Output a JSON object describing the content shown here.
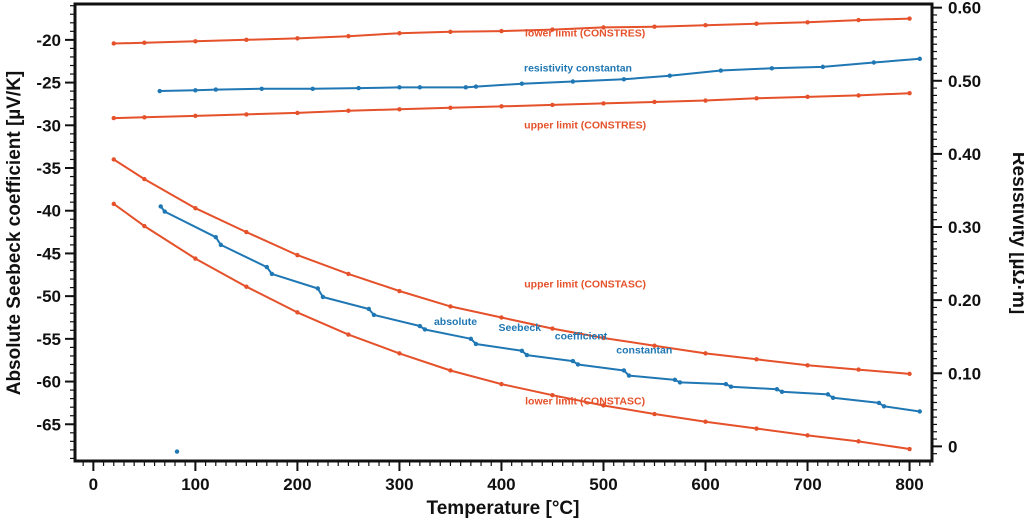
{
  "chart_data": {
    "type": "line",
    "title": "",
    "xlabel": "Temperature [°C]",
    "ylabel_left": "Absolute Seebeck coefficient [µV/K]",
    "ylabel_right": "Resistivity [µΩ·m]",
    "xlim": [
      -18,
      822
    ],
    "ylim_left": [
      -69.3,
      -15.8
    ],
    "ylim_right": [
      -0.02,
      0.605
    ],
    "x_ticks": [
      0,
      100,
      200,
      300,
      400,
      500,
      600,
      700,
      800
    ],
    "y_left_ticks": [
      -20,
      -25,
      -30,
      -35,
      -40,
      -45,
      -50,
      -55,
      -60,
      -65
    ],
    "y_right_ticks": [
      0.6,
      0.5,
      0.4,
      0.3,
      0.2,
      0.1,
      0
    ],
    "y_right_tick_labels": [
      "0.60",
      "0.50",
      "0.40",
      "0.30",
      "0.20",
      "0.10",
      "0"
    ],
    "grid": false,
    "legend": "none",
    "colors": {
      "limit": "#e5512a",
      "measured": "#1f77b4"
    },
    "series": [
      {
        "name": "lower limit (CONSTRES)",
        "axis": "right",
        "color": "#e5512a",
        "x": [
          20,
          50,
          100,
          150,
          200,
          250,
          300,
          350,
          400,
          450,
          500,
          550,
          600,
          650,
          700,
          750,
          800
        ],
        "y": [
          0.551,
          0.552,
          0.554,
          0.556,
          0.558,
          0.561,
          0.565,
          0.567,
          0.568,
          0.57,
          0.573,
          0.574,
          0.576,
          0.578,
          0.58,
          0.583,
          0.585
        ]
      },
      {
        "name": "resistivity constantan",
        "axis": "right",
        "color": "#1f77b4",
        "x": [
          65,
          100,
          120,
          165,
          215,
          260,
          300,
          320,
          365,
          375,
          420,
          470,
          520,
          565,
          615,
          665,
          715,
          765,
          810
        ],
        "y": [
          0.486,
          0.487,
          0.488,
          0.489,
          0.489,
          0.49,
          0.491,
          0.491,
          0.491,
          0.492,
          0.496,
          0.499,
          0.502,
          0.507,
          0.514,
          0.517,
          0.519,
          0.525,
          0.53
        ]
      },
      {
        "name": "upper limit (CONSTRES)",
        "axis": "right",
        "color": "#e5512a",
        "x": [
          20,
          50,
          100,
          150,
          200,
          250,
          300,
          350,
          400,
          450,
          500,
          550,
          600,
          650,
          700,
          750,
          800
        ],
        "y": [
          0.449,
          0.45,
          0.452,
          0.454,
          0.456,
          0.459,
          0.461,
          0.463,
          0.465,
          0.467,
          0.469,
          0.471,
          0.473,
          0.476,
          0.478,
          0.48,
          0.483
        ]
      },
      {
        "name": "upper limit (CONSTASC)",
        "axis": "left",
        "color": "#e5512a",
        "x": [
          20,
          50,
          100,
          150,
          200,
          250,
          300,
          350,
          400,
          450,
          500,
          550,
          600,
          650,
          700,
          750,
          800
        ],
        "y": [
          -34.0,
          -36.3,
          -39.7,
          -42.5,
          -45.2,
          -47.4,
          -49.4,
          -51.2,
          -52.5,
          -53.8,
          -54.9,
          -55.8,
          -56.7,
          -57.4,
          -58.1,
          -58.6,
          -59.1
        ]
      },
      {
        "name": "absolute Seebeck coefficient constantan",
        "axis": "left",
        "color": "#1f77b4",
        "x": [
          66,
          70,
          120,
          125,
          170,
          175,
          220,
          225,
          270,
          275,
          320,
          325,
          370,
          375,
          420,
          425,
          470,
          475,
          520,
          525,
          570,
          575,
          620,
          625,
          670,
          675,
          720,
          725,
          770,
          775,
          810
        ],
        "y": [
          -39.5,
          -40.1,
          -43.1,
          -44.0,
          -46.6,
          -47.4,
          -49.1,
          -50.1,
          -51.5,
          -52.2,
          -53.5,
          -53.9,
          -55.0,
          -55.6,
          -56.4,
          -56.9,
          -57.6,
          -58.0,
          -58.7,
          -59.3,
          -59.8,
          -60.1,
          -60.3,
          -60.6,
          -60.9,
          -61.2,
          -61.5,
          -61.9,
          -62.5,
          -62.9,
          -63.5
        ]
      },
      {
        "name": "lower limit (CONSTASC)",
        "axis": "left",
        "color": "#e5512a",
        "x": [
          20,
          50,
          100,
          150,
          200,
          250,
          300,
          350,
          400,
          450,
          500,
          550,
          600,
          650,
          700,
          750,
          800
        ],
        "y": [
          -39.2,
          -41.8,
          -45.6,
          -48.9,
          -51.9,
          -54.5,
          -56.7,
          -58.7,
          -60.3,
          -61.6,
          -62.8,
          -63.8,
          -64.7,
          -65.5,
          -66.3,
          -67.0,
          -67.9
        ]
      }
    ],
    "outlier_points": [
      {
        "x": 82,
        "y": -68.2,
        "axis": "left",
        "color": "#1f77b4"
      }
    ],
    "annotations": [
      {
        "text": "lower limit (CONSTRES)",
        "x": 482,
        "y": -19.6,
        "axis": "left",
        "color": "#e5512a"
      },
      {
        "text": "resistivity constantan",
        "x": 475,
        "y": -23.7,
        "axis": "left",
        "color": "#1f77b4"
      },
      {
        "text": "upper limit (CONSTRES)",
        "x": 482,
        "y": -30.4,
        "axis": "left",
        "color": "#e5512a"
      },
      {
        "text": "upper limit (CONSTASC)",
        "x": 482,
        "y": -49.0,
        "axis": "left",
        "color": "#e5512a"
      },
      {
        "text": "absolute",
        "x": 355,
        "y": -53.4,
        "axis": "left",
        "color": "#1f77b4"
      },
      {
        "text": "Seebeck",
        "x": 418,
        "y": -54.1,
        "axis": "left",
        "color": "#1f77b4"
      },
      {
        "text": "coefficient",
        "x": 478,
        "y": -55.1,
        "axis": "left",
        "color": "#1f77b4"
      },
      {
        "text": "constantan",
        "x": 540,
        "y": -56.7,
        "axis": "left",
        "color": "#1f77b4"
      },
      {
        "text": "lower limit (CONSTASC)",
        "x": 482,
        "y": -62.7,
        "axis": "left",
        "color": "#e5512a"
      }
    ]
  }
}
